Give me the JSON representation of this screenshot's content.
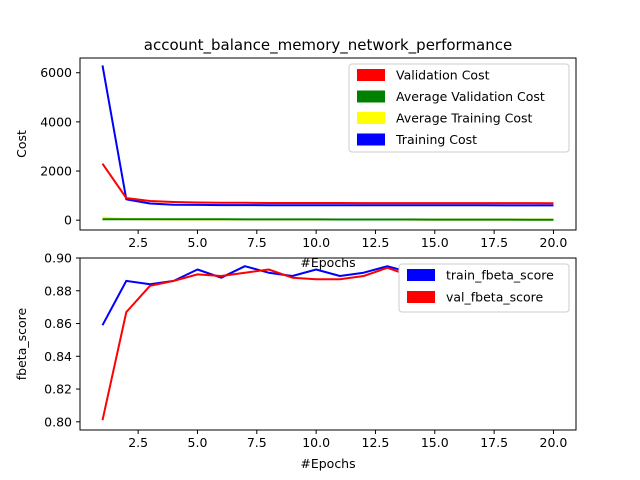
{
  "chart_data": [
    {
      "type": "line",
      "title": "account_balance_memory_network_performance",
      "xlabel": "#Epochs",
      "ylabel": "Cost",
      "xlim": [
        0.05,
        20.95
      ],
      "ylim": [
        -400,
        6600
      ],
      "xticks": [
        "2.5",
        "5.0",
        "7.5",
        "10.0",
        "12.5",
        "15.0",
        "17.5",
        "20.0"
      ],
      "yticks": [
        "0",
        "2000",
        "4000",
        "6000"
      ],
      "legend": "top-right",
      "x": [
        1,
        2,
        3,
        4,
        5,
        6,
        7,
        8,
        9,
        10,
        11,
        12,
        13,
        14,
        15,
        16,
        17,
        18,
        19,
        20
      ],
      "series": [
        {
          "name": "Training Cost",
          "color": "#0000ff",
          "values": [
            6300,
            850,
            680,
            630,
            620,
            615,
            612,
            610,
            610,
            608,
            607,
            606,
            606,
            605,
            605,
            604,
            604,
            603,
            603,
            602
          ]
        },
        {
          "name": "Validation Cost",
          "color": "#ff0000",
          "values": [
            2300,
            900,
            780,
            740,
            720,
            710,
            705,
            700,
            700,
            698,
            697,
            696,
            696,
            695,
            695,
            694,
            694,
            693,
            693,
            692
          ]
        },
        {
          "name": "Average Training Cost",
          "color": "#ffff00",
          "values": [
            110,
            45,
            36,
            33,
            31,
            30,
            29,
            28,
            28,
            27,
            27,
            26,
            26,
            25,
            25,
            24,
            24,
            23,
            23,
            22
          ]
        },
        {
          "name": "Average Validation Cost",
          "color": "#008000",
          "values": [
            40,
            38,
            37,
            36,
            35,
            34,
            33,
            32,
            31,
            30,
            29,
            28,
            27,
            26,
            25,
            24,
            23,
            22,
            21,
            20
          ]
        }
      ],
      "legend_order": [
        "Validation Cost",
        "Average Validation Cost",
        "Average Training Cost",
        "Training Cost"
      ]
    },
    {
      "type": "line",
      "title": "",
      "xlabel": "#Epochs",
      "ylabel": "fbeta_score",
      "xlim": [
        0.05,
        20.95
      ],
      "ylim": [
        0.795,
        0.9
      ],
      "xticks": [
        "2.5",
        "5.0",
        "7.5",
        "10.0",
        "12.5",
        "15.0",
        "17.5",
        "20.0"
      ],
      "yticks": [
        "0.80",
        "0.82",
        "0.84",
        "0.86",
        "0.88",
        "0.90"
      ],
      "legend": "top-right",
      "x": [
        1,
        2,
        3,
        4,
        5,
        6,
        7,
        8,
        9,
        10,
        11,
        12,
        13,
        14,
        15,
        16,
        17,
        18,
        19,
        20
      ],
      "series": [
        {
          "name": "train_fbeta_score",
          "color": "#0000ff",
          "values": [
            0.859,
            0.886,
            0.884,
            0.886,
            0.893,
            0.888,
            0.895,
            0.891,
            0.889,
            0.893,
            0.889,
            0.891,
            0.895,
            0.891,
            0.893,
            0.89,
            0.889,
            0.896,
            0.89,
            0.891
          ]
        },
        {
          "name": "val_fbeta_score",
          "color": "#ff0000",
          "values": [
            0.801,
            0.867,
            0.883,
            0.886,
            0.89,
            0.889,
            0.891,
            0.893,
            0.888,
            0.887,
            0.887,
            0.889,
            0.894,
            0.889,
            0.888,
            0.888,
            0.888,
            0.891,
            0.887,
            0.888
          ]
        }
      ],
      "legend_order": [
        "train_fbeta_score",
        "val_fbeta_score"
      ]
    }
  ]
}
